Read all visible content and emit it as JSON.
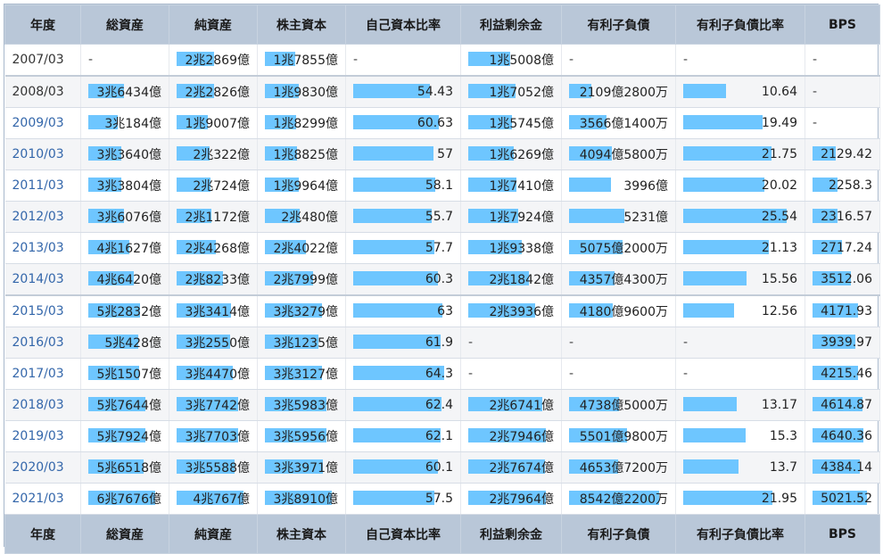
{
  "headers": [
    "年度",
    "総資産",
    "純資産",
    "株主資本",
    "自己資本比率",
    "利益剰余金",
    "有利子負債",
    "有利子負債比率",
    "BPS"
  ],
  "columns": {
    "total_assets": {
      "max": 6.7676
    },
    "net_assets": {
      "max": 4.0767
    },
    "shareholders_equity": {
      "max": 3.891
    },
    "equity_ratio": {
      "max": 64.3
    },
    "retained_earnings": {
      "max": 2.7964
    },
    "interest_debt": {
      "max": 8542.22
    },
    "debt_ratio": {
      "max": 25.54
    },
    "bps": {
      "max": 5021.52
    }
  },
  "rows": [
    {
      "year": "2007/03",
      "total_assets": {
        "text": "-",
        "v": 0
      },
      "net_assets": {
        "text": "2兆2869億",
        "v": 2.2869
      },
      "shareholders_equity": {
        "text": "1兆7855億",
        "v": 1.7855
      },
      "equity_ratio": {
        "text": "-",
        "v": 0
      },
      "retained_earnings": {
        "text": "1兆5008億",
        "v": 1.5008
      },
      "interest_debt": {
        "text": "-",
        "v": 0
      },
      "debt_ratio": {
        "text": "-",
        "v": 0
      },
      "bps": {
        "text": "-",
        "v": 0
      }
    },
    {
      "year": "2008/03",
      "total_assets": {
        "text": "3兆6434億",
        "v": 3.6434
      },
      "net_assets": {
        "text": "2兆2826億",
        "v": 2.2826
      },
      "shareholders_equity": {
        "text": "1兆9830億",
        "v": 1.983
      },
      "equity_ratio": {
        "text": "54.43",
        "v": 54.43
      },
      "retained_earnings": {
        "text": "1兆7052億",
        "v": 1.7052
      },
      "interest_debt": {
        "text": "2109億2800万",
        "v": 2109.28
      },
      "debt_ratio": {
        "text": "10.64",
        "v": 10.64
      },
      "bps": {
        "text": "-",
        "v": 0
      }
    },
    {
      "year": "2009/03",
      "total_assets": {
        "text": "3兆184億",
        "v": 3.0184
      },
      "net_assets": {
        "text": "1兆9007億",
        "v": 1.9007
      },
      "shareholders_equity": {
        "text": "1兆8299億",
        "v": 1.8299
      },
      "equity_ratio": {
        "text": "60.63",
        "v": 60.63
      },
      "retained_earnings": {
        "text": "1兆5745億",
        "v": 1.5745
      },
      "interest_debt": {
        "text": "3566億1400万",
        "v": 3566.14
      },
      "debt_ratio": {
        "text": "19.49",
        "v": 19.49
      },
      "bps": {
        "text": "-",
        "v": 0
      }
    },
    {
      "year": "2010/03",
      "total_assets": {
        "text": "3兆3640億",
        "v": 3.364
      },
      "net_assets": {
        "text": "2兆322億",
        "v": 2.0322
      },
      "shareholders_equity": {
        "text": "1兆8825億",
        "v": 1.8825
      },
      "equity_ratio": {
        "text": "57",
        "v": 57
      },
      "retained_earnings": {
        "text": "1兆6269億",
        "v": 1.6269
      },
      "interest_debt": {
        "text": "4094億5800万",
        "v": 4094.58
      },
      "debt_ratio": {
        "text": "21.75",
        "v": 21.75
      },
      "bps": {
        "text": "2129.42",
        "v": 2129.42
      }
    },
    {
      "year": "2011/03",
      "total_assets": {
        "text": "3兆3804億",
        "v": 3.3804
      },
      "net_assets": {
        "text": "2兆724億",
        "v": 2.0724
      },
      "shareholders_equity": {
        "text": "1兆9964億",
        "v": 1.9964
      },
      "equity_ratio": {
        "text": "58.1",
        "v": 58.1
      },
      "retained_earnings": {
        "text": "1兆7410億",
        "v": 1.741
      },
      "interest_debt": {
        "text": "3996億",
        "v": 3996
      },
      "debt_ratio": {
        "text": "20.02",
        "v": 20.02
      },
      "bps": {
        "text": "2258.3",
        "v": 2258.3
      }
    },
    {
      "year": "2012/03",
      "total_assets": {
        "text": "3兆6076億",
        "v": 3.6076
      },
      "net_assets": {
        "text": "2兆1172億",
        "v": 2.1172
      },
      "shareholders_equity": {
        "text": "2兆480億",
        "v": 2.048
      },
      "equity_ratio": {
        "text": "55.7",
        "v": 55.7
      },
      "retained_earnings": {
        "text": "1兆7924億",
        "v": 1.7924
      },
      "interest_debt": {
        "text": "5231億",
        "v": 5231
      },
      "debt_ratio": {
        "text": "25.54",
        "v": 25.54
      },
      "bps": {
        "text": "2316.57",
        "v": 2316.57
      }
    },
    {
      "year": "2013/03",
      "total_assets": {
        "text": "4兆1627億",
        "v": 4.1627
      },
      "net_assets": {
        "text": "2兆4268億",
        "v": 2.4268
      },
      "shareholders_equity": {
        "text": "2兆4022億",
        "v": 2.4022
      },
      "equity_ratio": {
        "text": "57.7",
        "v": 57.7
      },
      "retained_earnings": {
        "text": "1兆9338億",
        "v": 1.9338
      },
      "interest_debt": {
        "text": "5075億2000万",
        "v": 5075.2
      },
      "debt_ratio": {
        "text": "21.13",
        "v": 21.13
      },
      "bps": {
        "text": "2717.24",
        "v": 2717.24
      }
    },
    {
      "year": "2014/03",
      "total_assets": {
        "text": "4兆6420億",
        "v": 4.642
      },
      "net_assets": {
        "text": "2兆8233億",
        "v": 2.8233
      },
      "shareholders_equity": {
        "text": "2兆7999億",
        "v": 2.7999
      },
      "equity_ratio": {
        "text": "60.3",
        "v": 60.3
      },
      "retained_earnings": {
        "text": "2兆1842億",
        "v": 2.1842
      },
      "interest_debt": {
        "text": "4357億4300万",
        "v": 4357.43
      },
      "debt_ratio": {
        "text": "15.56",
        "v": 15.56
      },
      "bps": {
        "text": "3512.06",
        "v": 3512.06
      }
    },
    {
      "year": "2015/03",
      "total_assets": {
        "text": "5兆2832億",
        "v": 5.2832
      },
      "net_assets": {
        "text": "3兆3414億",
        "v": 3.3414
      },
      "shareholders_equity": {
        "text": "3兆3279億",
        "v": 3.3279
      },
      "equity_ratio": {
        "text": "63",
        "v": 63
      },
      "retained_earnings": {
        "text": "2兆3936億",
        "v": 2.3936
      },
      "interest_debt": {
        "text": "4180億9600万",
        "v": 4180.96
      },
      "debt_ratio": {
        "text": "12.56",
        "v": 12.56
      },
      "bps": {
        "text": "4171.93",
        "v": 4171.93
      }
    },
    {
      "year": "2016/03",
      "total_assets": {
        "text": "5兆428億",
        "v": 5.0428
      },
      "net_assets": {
        "text": "3兆2550億",
        "v": 3.255
      },
      "shareholders_equity": {
        "text": "3兆1235億",
        "v": 3.1235
      },
      "equity_ratio": {
        "text": "61.9",
        "v": 61.9
      },
      "retained_earnings": {
        "text": "-",
        "v": 0
      },
      "interest_debt": {
        "text": "-",
        "v": 0
      },
      "debt_ratio": {
        "text": "-",
        "v": 0
      },
      "bps": {
        "text": "3939.97",
        "v": 3939.97
      }
    },
    {
      "year": "2017/03",
      "total_assets": {
        "text": "5兆1507億",
        "v": 5.1507
      },
      "net_assets": {
        "text": "3兆4470億",
        "v": 3.447
      },
      "shareholders_equity": {
        "text": "3兆3127億",
        "v": 3.3127
      },
      "equity_ratio": {
        "text": "64.3",
        "v": 64.3
      },
      "retained_earnings": {
        "text": "-",
        "v": 0
      },
      "interest_debt": {
        "text": "-",
        "v": 0
      },
      "debt_ratio": {
        "text": "-",
        "v": 0
      },
      "bps": {
        "text": "4215.46",
        "v": 4215.46
      }
    },
    {
      "year": "2018/03",
      "total_assets": {
        "text": "5兆7644億",
        "v": 5.7644
      },
      "net_assets": {
        "text": "3兆7742億",
        "v": 3.7742
      },
      "shareholders_equity": {
        "text": "3兆5983億",
        "v": 3.5983
      },
      "equity_ratio": {
        "text": "62.4",
        "v": 62.4
      },
      "retained_earnings": {
        "text": "2兆6741億",
        "v": 2.6741
      },
      "interest_debt": {
        "text": "4738億5000万",
        "v": 4738.5
      },
      "debt_ratio": {
        "text": "13.17",
        "v": 13.17
      },
      "bps": {
        "text": "4614.87",
        "v": 4614.87
      }
    },
    {
      "year": "2019/03",
      "total_assets": {
        "text": "5兆7924億",
        "v": 5.7924
      },
      "net_assets": {
        "text": "3兆7703億",
        "v": 3.7703
      },
      "shareholders_equity": {
        "text": "3兆5956億",
        "v": 3.5956
      },
      "equity_ratio": {
        "text": "62.1",
        "v": 62.1
      },
      "retained_earnings": {
        "text": "2兆7946億",
        "v": 2.7946
      },
      "interest_debt": {
        "text": "5501億9800万",
        "v": 5501.98
      },
      "debt_ratio": {
        "text": "15.3",
        "v": 15.3
      },
      "bps": {
        "text": "4640.36",
        "v": 4640.36
      }
    },
    {
      "year": "2020/03",
      "total_assets": {
        "text": "5兆6518億",
        "v": 5.6518
      },
      "net_assets": {
        "text": "3兆5588億",
        "v": 3.5588
      },
      "shareholders_equity": {
        "text": "3兆3971億",
        "v": 3.3971
      },
      "equity_ratio": {
        "text": "60.1",
        "v": 60.1
      },
      "retained_earnings": {
        "text": "2兆7674億",
        "v": 2.7674
      },
      "interest_debt": {
        "text": "4653億7200万",
        "v": 4653.72
      },
      "debt_ratio": {
        "text": "13.7",
        "v": 13.7
      },
      "bps": {
        "text": "4384.14",
        "v": 4384.14
      }
    },
    {
      "year": "2021/03",
      "total_assets": {
        "text": "6兆7676億",
        "v": 6.7676
      },
      "net_assets": {
        "text": "4兆767億",
        "v": 4.0767
      },
      "shareholders_equity": {
        "text": "3兆8910億",
        "v": 3.891
      },
      "equity_ratio": {
        "text": "57.5",
        "v": 57.5
      },
      "retained_earnings": {
        "text": "2兆7964億",
        "v": 2.7964
      },
      "interest_debt": {
        "text": "8542億2200万",
        "v": 8542.22
      },
      "debt_ratio": {
        "text": "21.95",
        "v": 21.95
      },
      "bps": {
        "text": "5021.52",
        "v": 5021.52
      }
    }
  ],
  "colors": {
    "bar": "#6ec6ff",
    "header": "#b9c7d8",
    "year_link": "#3366aa"
  }
}
